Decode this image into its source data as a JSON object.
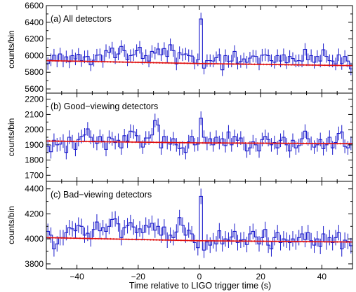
{
  "chart_data": {
    "type": "line",
    "xlabel": "Time relative to LIGO trigger time (s)",
    "xlim": [
      -50,
      50
    ],
    "x_ticks": [
      -40,
      -20,
      0,
      20,
      40
    ],
    "x_tick_labels": [
      "−40",
      "−20",
      "0",
      "20",
      "40"
    ],
    "bin_width": 1,
    "bin_start": -50,
    "grid": false,
    "colors": {
      "histogram": "#1a1acc",
      "model": "#e01010",
      "axes": "#000000"
    },
    "panels": [
      {
        "label": "(a) All detectors",
        "ylabel": "counts/bin",
        "ylim": [
          5550,
          6600
        ],
        "y_ticks": [
          5600,
          5800,
          6000,
          6200,
          6400,
          6600
        ],
        "y_tick_labels": [
          "5600",
          "5800",
          "6000",
          "6200",
          "6400",
          "6600"
        ],
        "error": 75,
        "background": {
          "x": [
            -50,
            0,
            50
          ],
          "y": [
            5940,
            5905,
            5880
          ]
        },
        "values": [
          5905,
          5950,
          6005,
          5935,
          6020,
          5935,
          5985,
          5925,
          6000,
          5960,
          6015,
          5940,
          5985,
          5990,
          5890,
          5945,
          6005,
          6010,
          5930,
          6060,
          6040,
          6090,
          5975,
          6020,
          6110,
          6060,
          5950,
          6000,
          6010,
          6060,
          6100,
          5965,
          6000,
          5935,
          6050,
          6030,
          6080,
          6010,
          6085,
          5990,
          6130,
          6060,
          5900,
          6035,
          6010,
          6020,
          6000,
          5995,
          5910,
          5950,
          6440,
          5850,
          5940,
          5940,
          5935,
          5975,
          6010,
          5830,
          6000,
          5930,
          5935,
          6050,
          5910,
          5930,
          5960,
          5920,
          5970,
          5995,
          5990,
          5900,
          6005,
          6010,
          6000,
          5940,
          5920,
          6000,
          5935,
          6010,
          5915,
          5990,
          5965,
          5935,
          5940,
          5935,
          6075,
          5950,
          6000,
          5920,
          5990,
          5935,
          6070,
          5990,
          5940,
          5935,
          5900,
          6010,
          5905,
          5990,
          5935,
          5840
        ]
      },
      {
        "label": "(b) Good−viewing detectors",
        "ylabel": "counts/bin",
        "ylim": [
          1660,
          2240
        ],
        "y_ticks": [
          1700,
          1800,
          1900,
          2000,
          2100,
          2200
        ],
        "y_tick_labels": [
          "1700",
          "1800",
          "1900",
          "2000",
          "2100",
          "2200"
        ],
        "error": 45,
        "background": {
          "x": [
            -50,
            0,
            50
          ],
          "y": [
            1925,
            1913,
            1908
          ]
        },
        "values": [
          1890,
          1855,
          1930,
          1900,
          1905,
          1925,
          1850,
          1950,
          1920,
          1870,
          1935,
          1955,
          1965,
          2005,
          1950,
          1925,
          1910,
          1955,
          1925,
          1870,
          1950,
          1940,
          1915,
          1930,
          1880,
          1960,
          1925,
          1990,
          1985,
          1960,
          1920,
          1885,
          1945,
          1945,
          1965,
          2060,
          2030,
          1880,
          1955,
          1915,
          1905,
          1940,
          1900,
          1875,
          1880,
          1850,
          1920,
          1955,
          1900,
          1905,
          2075,
          1950,
          1910,
          1940,
          1900,
          1950,
          1915,
          1940,
          1895,
          1985,
          1900,
          1955,
          1930,
          1945,
          1910,
          1860,
          1880,
          1920,
          1900,
          1860,
          1935,
          1955,
          1935,
          1900,
          1915,
          1880,
          1930,
          1950,
          1900,
          1860,
          1930,
          1880,
          1895,
          1940,
          1990,
          1940,
          1910,
          1885,
          1900,
          1935,
          1875,
          1900,
          1950,
          1880,
          1915,
          1975,
          1985,
          1890,
          1880,
          1910
        ]
      },
      {
        "label": "(c) Bad−viewing detectors",
        "ylabel": "counts/bin",
        "ylim": [
          3760,
          4460
        ],
        "y_ticks": [
          3800,
          4000,
          4200,
          4400
        ],
        "y_tick_labels": [
          "3800",
          "4000",
          "4200",
          "4400"
        ],
        "error": 62,
        "background": {
          "x": [
            -50,
            0,
            50
          ],
          "y": [
            4010,
            3985,
            3975
          ]
        },
        "values": [
          4060,
          4030,
          3920,
          3960,
          4010,
          4010,
          4050,
          4090,
          4080,
          4065,
          4110,
          4100,
          4030,
          4045,
          4000,
          4075,
          4135,
          4065,
          4090,
          4060,
          4100,
          4155,
          4160,
          4120,
          4010,
          4090,
          4105,
          4130,
          4095,
          4050,
          4080,
          4050,
          4110,
          4095,
          4125,
          4070,
          4100,
          4030,
          4095,
          3990,
          4030,
          4010,
          4055,
          4170,
          4110,
          4030,
          4070,
          4040,
          3970,
          3930,
          4340,
          3910,
          3975,
          3950,
          3985,
          3960,
          4065,
          3960,
          4000,
          3990,
          4015,
          4060,
          3970,
          3990,
          3995,
          3955,
          4040,
          4060,
          4015,
          3960,
          4010,
          4075,
          3950,
          3920,
          4010,
          4050,
          3970,
          4000,
          3990,
          3970,
          4000,
          3975,
          4010,
          4040,
          3995,
          4050,
          3985,
          3950,
          4000,
          3940,
          4040,
          3975,
          4010,
          3970,
          4010,
          4050,
          3920,
          3990,
          3980,
          3945
        ]
      }
    ]
  }
}
